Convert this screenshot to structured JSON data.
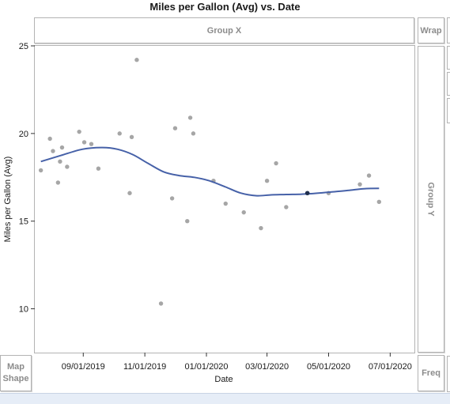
{
  "window": {
    "title": "Miles per Gallon (Avg) vs. Date"
  },
  "zones": {
    "group_x": "Group X",
    "group_y": "Group Y",
    "wrap": "Wrap",
    "map_shape_line1": "Map",
    "map_shape_line2": "Shape",
    "freq": "Freq"
  },
  "colors": {
    "points": "#a6a6a6",
    "highlight_point": "#1f2f4f",
    "smoother": "#4661a8",
    "frame": "#b3b3b3",
    "status_bar": "#e6edf7"
  },
  "chart_data": {
    "type": "scatter",
    "title": "Miles per Gallon (Avg) vs. Date",
    "xlabel": "Date",
    "ylabel": "Miles per Gallon (Avg)",
    "x_ticks": [
      "09/01/2019",
      "11/01/2019",
      "01/01/2020",
      "03/01/2020",
      "05/01/2020",
      "07/01/2020"
    ],
    "y_ticks": [
      10,
      15,
      20,
      25
    ],
    "xlim": [
      "2019-07-15",
      "2020-07-25"
    ],
    "ylim": [
      7.5,
      25
    ],
    "grid": false,
    "legend": "none",
    "points": [
      {
        "x": "2019-07-21",
        "y": 17.9
      },
      {
        "x": "2019-07-30",
        "y": 19.7
      },
      {
        "x": "2019-08-02",
        "y": 19.0
      },
      {
        "x": "2019-08-07",
        "y": 17.2
      },
      {
        "x": "2019-08-09",
        "y": 18.4
      },
      {
        "x": "2019-08-11",
        "y": 19.2
      },
      {
        "x": "2019-08-16",
        "y": 18.1
      },
      {
        "x": "2019-08-28",
        "y": 20.1
      },
      {
        "x": "2019-09-02",
        "y": 19.5
      },
      {
        "x": "2019-09-09",
        "y": 19.4
      },
      {
        "x": "2019-09-16",
        "y": 18.0
      },
      {
        "x": "2019-10-07",
        "y": 20.0
      },
      {
        "x": "2019-10-17",
        "y": 16.6
      },
      {
        "x": "2019-10-19",
        "y": 19.8
      },
      {
        "x": "2019-10-24",
        "y": 24.2
      },
      {
        "x": "2019-11-17",
        "y": 10.3
      },
      {
        "x": "2019-11-28",
        "y": 16.3
      },
      {
        "x": "2019-12-01",
        "y": 20.3
      },
      {
        "x": "2019-12-13",
        "y": 15.0
      },
      {
        "x": "2019-12-16",
        "y": 20.9
      },
      {
        "x": "2019-12-19",
        "y": 20.0
      },
      {
        "x": "2020-01-08",
        "y": 17.3
      },
      {
        "x": "2020-01-20",
        "y": 16.0
      },
      {
        "x": "2020-02-07",
        "y": 15.5
      },
      {
        "x": "2020-02-24",
        "y": 14.6
      },
      {
        "x": "2020-03-01",
        "y": 17.3
      },
      {
        "x": "2020-03-10",
        "y": 18.3
      },
      {
        "x": "2020-03-20",
        "y": 15.8
      },
      {
        "x": "2020-04-10",
        "y": 16.6,
        "highlight": true
      },
      {
        "x": "2020-05-01",
        "y": 16.6
      },
      {
        "x": "2020-06-01",
        "y": 17.1
      },
      {
        "x": "2020-06-10",
        "y": 17.6
      },
      {
        "x": "2020-06-20",
        "y": 16.1
      }
    ],
    "smoother": [
      {
        "x": "2019-07-21",
        "y": 18.4
      },
      {
        "x": "2019-08-10",
        "y": 18.75
      },
      {
        "x": "2019-08-31",
        "y": 19.1
      },
      {
        "x": "2019-09-20",
        "y": 19.2
      },
      {
        "x": "2019-10-05",
        "y": 19.1
      },
      {
        "x": "2019-10-20",
        "y": 18.8
      },
      {
        "x": "2019-11-04",
        "y": 18.3
      },
      {
        "x": "2019-11-20",
        "y": 17.8
      },
      {
        "x": "2019-12-05",
        "y": 17.6
      },
      {
        "x": "2019-12-20",
        "y": 17.5
      },
      {
        "x": "2020-01-04",
        "y": 17.3
      },
      {
        "x": "2020-01-20",
        "y": 16.95
      },
      {
        "x": "2020-02-04",
        "y": 16.6
      },
      {
        "x": "2020-02-20",
        "y": 16.45
      },
      {
        "x": "2020-03-05",
        "y": 16.5
      },
      {
        "x": "2020-03-20",
        "y": 16.52
      },
      {
        "x": "2020-04-10",
        "y": 16.55
      },
      {
        "x": "2020-05-01",
        "y": 16.65
      },
      {
        "x": "2020-05-20",
        "y": 16.75
      },
      {
        "x": "2020-06-05",
        "y": 16.85
      },
      {
        "x": "2020-06-20",
        "y": 16.87
      }
    ]
  }
}
